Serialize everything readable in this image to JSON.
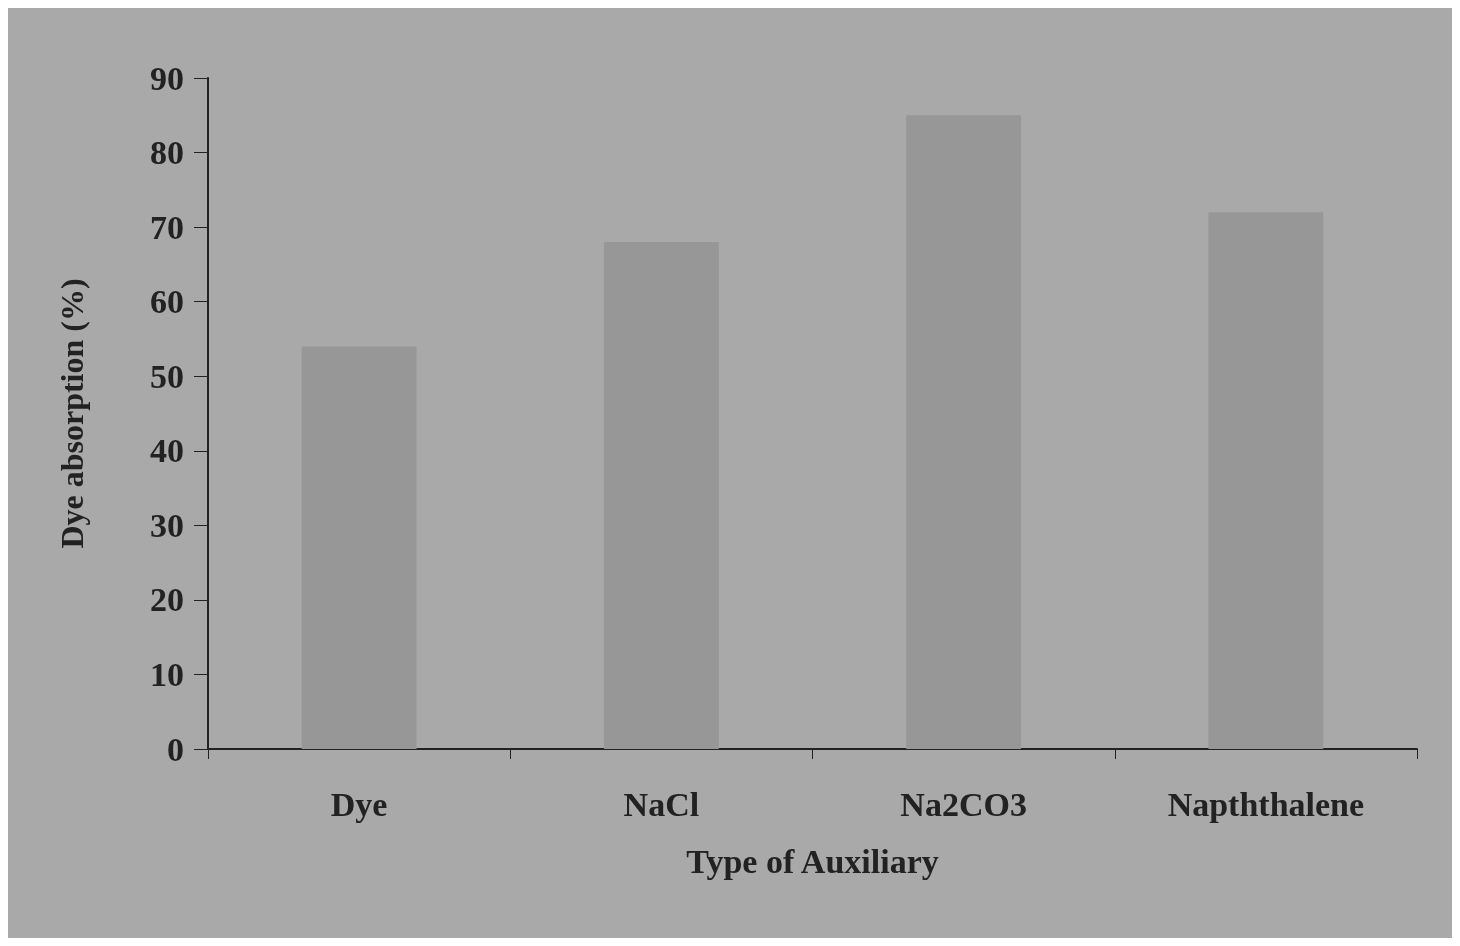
{
  "chart_data": {
    "type": "bar",
    "xlabel": "Type of Auxiliary",
    "ylabel": "Dye absorption (%)",
    "categories": [
      "Dye",
      "NaCl",
      "Na2CO3",
      "Napththalene"
    ],
    "values": [
      54,
      68,
      85,
      72
    ],
    "color": "#979797",
    "ylim": [
      0,
      90
    ],
    "yticks": [
      0,
      10,
      20,
      30,
      40,
      50,
      60,
      70,
      80,
      90
    ],
    "grid": false
  }
}
